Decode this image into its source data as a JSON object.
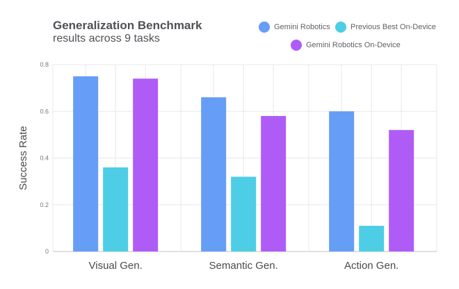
{
  "chart_data": {
    "type": "bar",
    "title": "Generalization Benchmark",
    "subtitle": "results across 9 tasks",
    "xlabel": "",
    "ylabel": "Success Rate",
    "ylim": [
      0,
      0.8
    ],
    "yticks": [
      "0",
      "0.2",
      "0.4",
      "0.6",
      "0.8"
    ],
    "ytick_values": [
      0,
      0.2,
      0.4,
      0.6,
      0.8
    ],
    "grid": true,
    "legend_position": "top-right",
    "categories": [
      "Visual Gen.",
      "Semantic Gen.",
      "Action Gen."
    ],
    "series": [
      {
        "name": "Gemini Robotics",
        "color": "#669df6",
        "values": [
          0.75,
          0.66,
          0.6
        ]
      },
      {
        "name": "Previous Best On-Device",
        "color": "#4ecde6",
        "values": [
          0.36,
          0.32,
          0.11
        ]
      },
      {
        "name": "Gemini Robotics On-Device",
        "color": "#af5cf7",
        "values": [
          0.74,
          0.58,
          0.52
        ]
      }
    ]
  }
}
